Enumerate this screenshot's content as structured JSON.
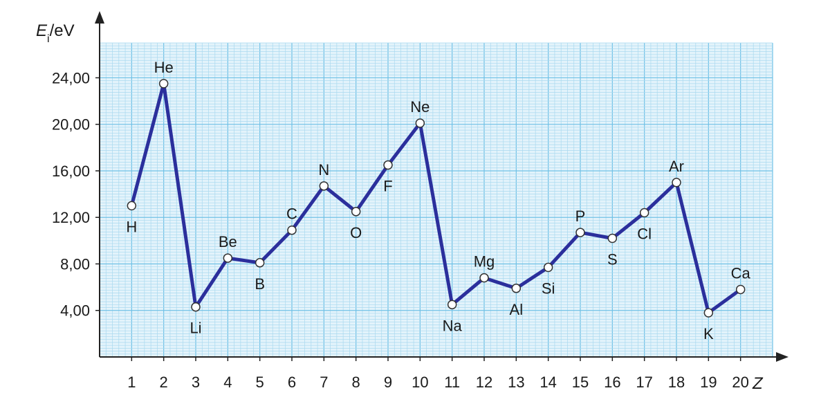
{
  "chart_data": {
    "type": "line",
    "ylabel_main": "E",
    "ylabel_sub": "i",
    "ylabel_unit": "/eV",
    "xlabel": "Z",
    "xlim": [
      0,
      21
    ],
    "ylim": [
      0,
      27
    ],
    "y_ticks": [
      4,
      8,
      12,
      16,
      20,
      24
    ],
    "y_tick_labels": [
      "4,00",
      "8,00",
      "12,00",
      "16,00",
      "20,00",
      "24,00"
    ],
    "x_ticks": [
      1,
      2,
      3,
      4,
      5,
      6,
      7,
      8,
      9,
      10,
      11,
      12,
      13,
      14,
      15,
      16,
      17,
      18,
      19,
      20
    ],
    "x_tick_labels": [
      "1",
      "2",
      "3",
      "4",
      "5",
      "6",
      "7",
      "8",
      "9",
      "10",
      "11",
      "12",
      "13",
      "14",
      "15",
      "16",
      "17",
      "18",
      "19",
      "20"
    ],
    "grid": true,
    "series": [
      {
        "x": [
          1,
          2,
          3,
          4,
          5,
          6,
          7,
          8,
          9,
          10,
          11,
          12,
          13,
          14,
          15,
          16,
          17,
          18,
          19,
          20
        ],
        "values": [
          13.0,
          23.5,
          4.3,
          8.5,
          8.1,
          10.9,
          14.7,
          12.5,
          16.5,
          20.1,
          4.5,
          6.8,
          5.9,
          7.7,
          10.7,
          10.2,
          12.4,
          15.0,
          3.8,
          5.8
        ]
      }
    ],
    "point_labels": [
      "H",
      "He",
      "Li",
      "Be",
      "B",
      "C",
      "N",
      "O",
      "F",
      "Ne",
      "Na",
      "Mg",
      "Al",
      "Si",
      "P",
      "S",
      "Cl",
      "Ar",
      "K",
      "Ca"
    ],
    "point_label_positions": [
      "below",
      "above",
      "below",
      "above",
      "below",
      "above",
      "above",
      "below",
      "below",
      "above",
      "below",
      "above",
      "below",
      "below",
      "above",
      "below",
      "below",
      "above",
      "below",
      "above"
    ],
    "colors": {
      "line": "#2b2f9c",
      "grid_minor": "#a9d9ef",
      "grid_major": "#6fc1e6",
      "background": "#e3f3fb",
      "axis": "#222222",
      "marker_fill": "#ffffff"
    }
  }
}
